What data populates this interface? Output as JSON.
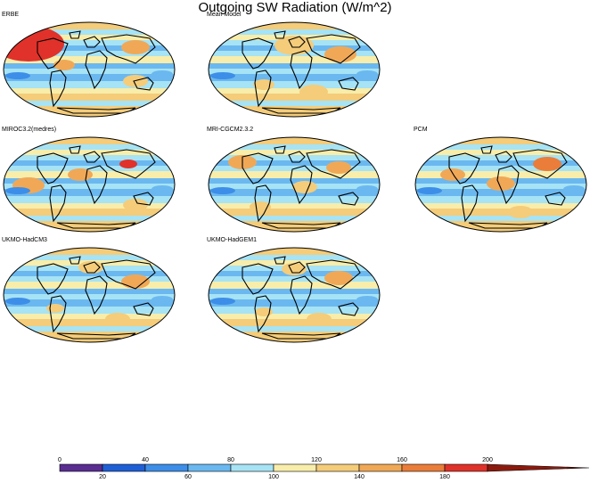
{
  "title": "Outgoing SW Radiation (W/m^2)",
  "panels": [
    {
      "label": "ERBE"
    },
    {
      "label": "Mean Model"
    },
    {
      "label": "MIROC3.2(medres)"
    },
    {
      "label": "MRI-CGCM2.3.2"
    },
    {
      "label": "PCM"
    },
    {
      "label": "UKMO-HadCM3"
    },
    {
      "label": "UKMO-HadGEM1"
    }
  ],
  "colorbar": {
    "top_labels": [
      "0",
      "40",
      "80",
      "120",
      "160",
      "200"
    ],
    "bottom_labels": [
      "20",
      "60",
      "100",
      "140",
      "180"
    ],
    "colors": [
      "#5a2d91",
      "#1f5fd6",
      "#3d8ee8",
      "#6bb8f0",
      "#a6e3f5",
      "#f8edaa",
      "#f4cc7a",
      "#f0a857",
      "#ea7d3a",
      "#e0322a",
      "#8b1a0e"
    ]
  }
}
